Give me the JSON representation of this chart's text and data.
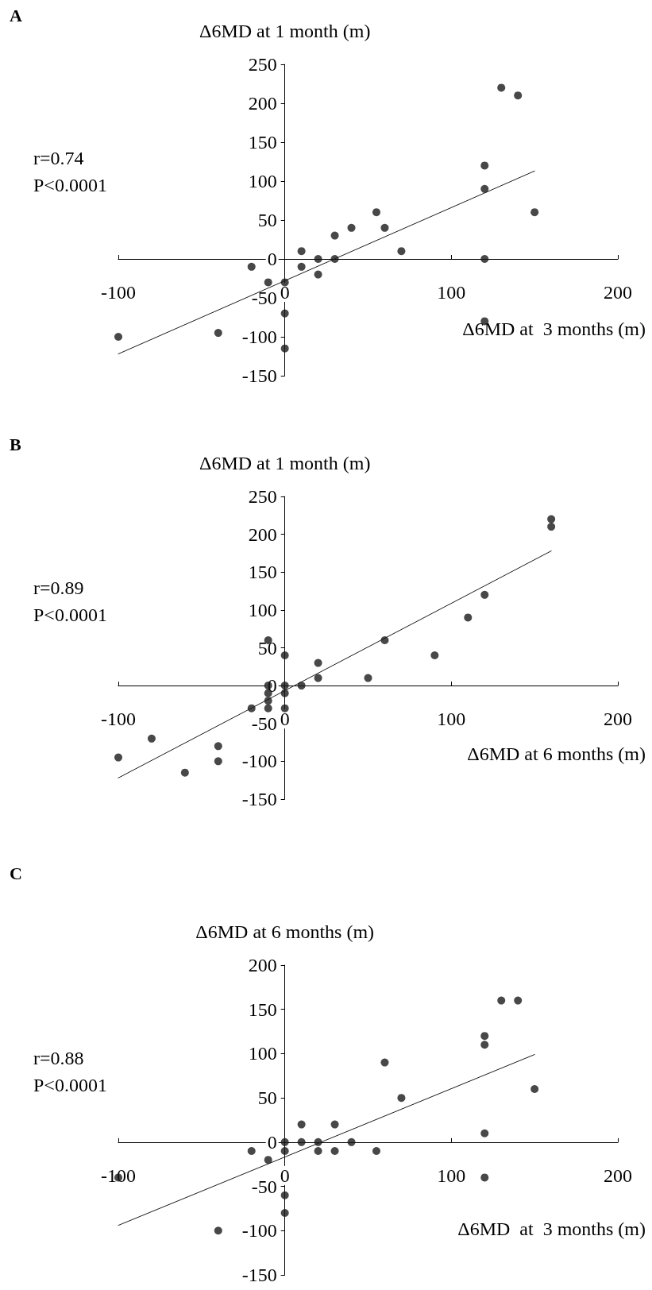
{
  "chart_data": [
    {
      "type": "scatter",
      "title": "A",
      "ylabel": "Δ6MD at 1 month (m)",
      "xlabel": "Δ6MD at  3 months (m)",
      "annotations": [
        "r=0.74",
        "P<0.0001"
      ],
      "xlim": [
        -100,
        200
      ],
      "xticks": [
        -100,
        0,
        100,
        200
      ],
      "ylim": [
        -150,
        250
      ],
      "yticks": [
        -150,
        -100,
        -50,
        0,
        50,
        100,
        150,
        200,
        250
      ],
      "marker": "circle",
      "series": [
        {
          "type": "scatter",
          "color": "#1a1a1a",
          "x": [
            130,
            140,
            120,
            120,
            150,
            55,
            60,
            40,
            30,
            10,
            70,
            20,
            30,
            120,
            -20,
            10,
            -10,
            0,
            20,
            0,
            120,
            -40,
            -100,
            0
          ],
          "values": [
            220,
            210,
            120,
            90,
            60,
            60,
            40,
            40,
            30,
            10,
            10,
            0,
            0,
            0,
            -10,
            -10,
            -30,
            -30,
            -20,
            -70,
            -80,
            -95,
            -100,
            -115
          ]
        },
        {
          "type": "line",
          "color": "#1a1a1a",
          "marker": "none",
          "line_style": "solid",
          "x": [
            -100,
            150
          ],
          "values": [
            -122,
            113
          ]
        }
      ]
    },
    {
      "type": "scatter",
      "title": "B",
      "ylabel": "Δ6MD at 1 month (m)",
      "xlabel": "Δ6MD at 6 months (m)",
      "annotations": [
        "r=0.89",
        "P<0.0001"
      ],
      "xlim": [
        -100,
        200
      ],
      "xticks": [
        -100,
        0,
        100,
        200
      ],
      "ylim": [
        -150,
        250
      ],
      "yticks": [
        -150,
        -100,
        -50,
        0,
        50,
        100,
        150,
        200,
        250
      ],
      "marker": "circle",
      "series": [
        {
          "type": "scatter",
          "color": "#1a1a1a",
          "x": [
            160,
            160,
            120,
            110,
            60,
            90,
            50,
            20,
            20,
            -10,
            0,
            -10,
            -10,
            -10,
            -10,
            0,
            0,
            0,
            10,
            -20,
            -80,
            -40,
            -40,
            -100,
            -60
          ],
          "values": [
            220,
            210,
            120,
            90,
            60,
            40,
            10,
            30,
            10,
            60,
            40,
            0,
            -10,
            -20,
            -30,
            0,
            -10,
            -30,
            0,
            -30,
            -70,
            -80,
            -100,
            -95,
            -115
          ]
        },
        {
          "type": "line",
          "color": "#1a1a1a",
          "marker": "none",
          "line_style": "solid",
          "x": [
            -100,
            160
          ],
          "values": [
            -122,
            178
          ]
        }
      ]
    },
    {
      "type": "scatter",
      "title": "C",
      "ylabel": "Δ6MD at 6 months (m)",
      "xlabel": "Δ6MD  at  3 months (m)",
      "annotations": [
        "r=0.88",
        "P<0.0001"
      ],
      "xlim": [
        -100,
        200
      ],
      "xticks": [
        -100,
        0,
        100,
        200
      ],
      "ylim": [
        -150,
        200
      ],
      "yticks": [
        -150,
        -100,
        -50,
        0,
        50,
        100,
        150,
        200
      ],
      "marker": "circle",
      "series": [
        {
          "type": "scatter",
          "color": "#1a1a1a",
          "x": [
            130,
            140,
            120,
            120,
            60,
            150,
            70,
            10,
            30,
            0,
            10,
            20,
            40,
            120,
            -20,
            0,
            20,
            30,
            55,
            -10,
            -100,
            120,
            0,
            0,
            -40
          ],
          "values": [
            160,
            160,
            120,
            110,
            90,
            60,
            50,
            20,
            20,
            0,
            0,
            0,
            0,
            10,
            -10,
            -10,
            -10,
            -10,
            -10,
            -20,
            -40,
            -40,
            -60,
            -80,
            -100
          ]
        },
        {
          "type": "line",
          "color": "#1a1a1a",
          "marker": "none",
          "line_style": "solid",
          "x": [
            -100,
            150
          ],
          "values": [
            -94,
            99
          ]
        }
      ]
    }
  ]
}
